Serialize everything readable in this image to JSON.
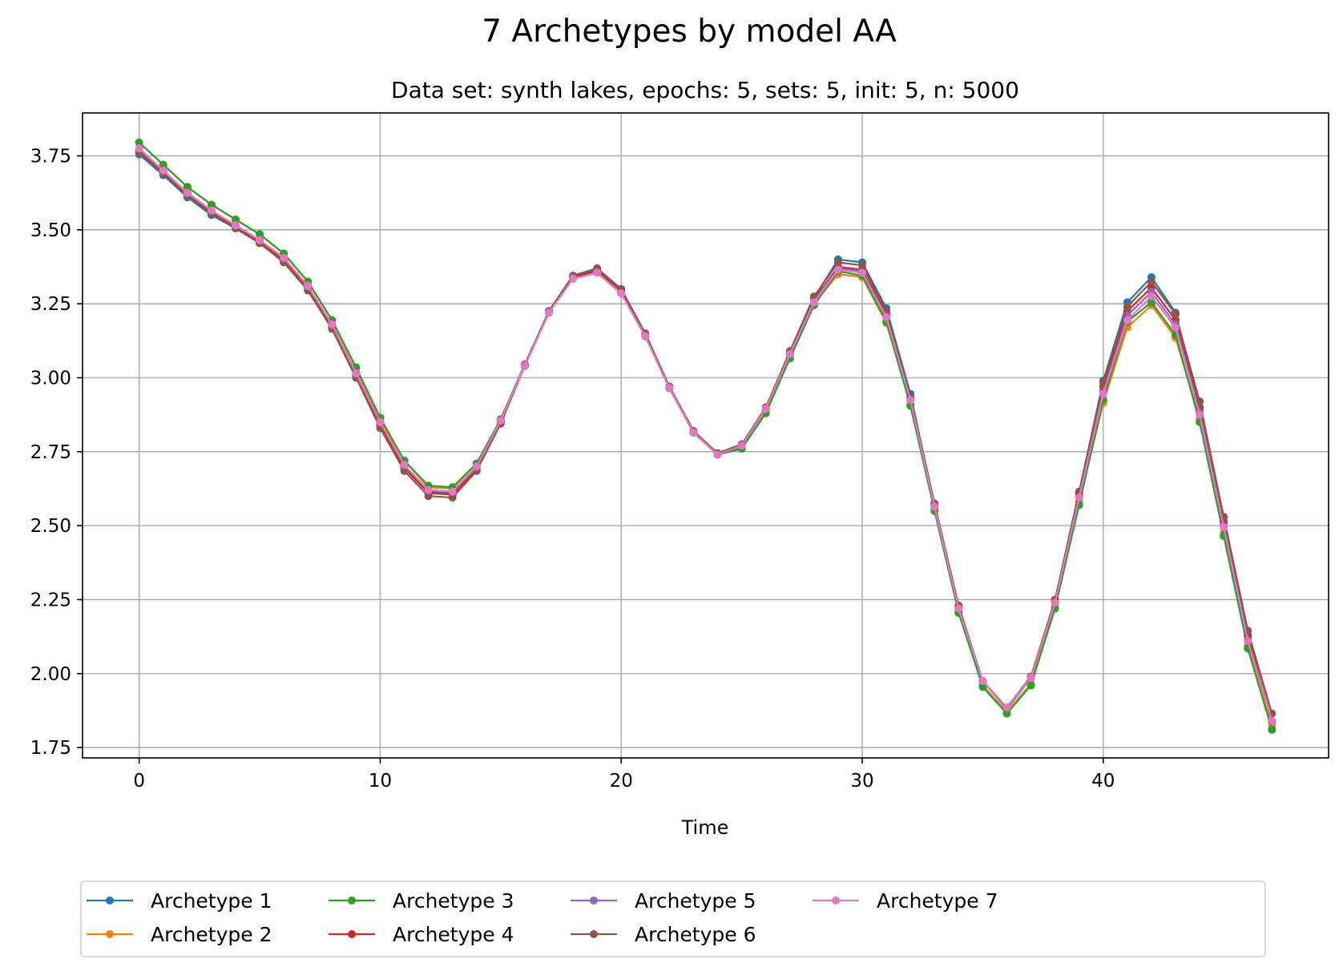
{
  "chart_data": {
    "type": "line",
    "title": "7 Archetypes by model AA",
    "subtitle": "Data set: synth lakes, epochs: 5, sets: 5, init: 5, n: 5000",
    "xlabel": "Time",
    "ylabel": "",
    "xlim": [
      -2.35,
      49.35
    ],
    "ylim": [
      1.715,
      3.895
    ],
    "xticks": [
      0,
      10,
      20,
      30,
      40
    ],
    "yticks": [
      1.75,
      2.0,
      2.25,
      2.5,
      2.75,
      3.0,
      3.25,
      3.5,
      3.75
    ],
    "ytick_labels": [
      "1.75",
      "2.00",
      "2.25",
      "2.50",
      "2.75",
      "3.00",
      "3.25",
      "3.50",
      "3.75"
    ],
    "grid": true,
    "legend_position": "bottom-center",
    "x": [
      0,
      1,
      2,
      3,
      4,
      5,
      6,
      7,
      8,
      9,
      10,
      11,
      12,
      13,
      14,
      15,
      16,
      17,
      18,
      19,
      20,
      21,
      22,
      23,
      24,
      25,
      26,
      27,
      28,
      29,
      30,
      31,
      32,
      33,
      34,
      35,
      36,
      37,
      38,
      39,
      40,
      41,
      42,
      43,
      44,
      45,
      46,
      47
    ],
    "series": [
      {
        "name": "Archetype 1",
        "color": "#1f77b4",
        "values": [
          3.755,
          3.685,
          3.61,
          3.55,
          3.505,
          3.455,
          3.395,
          3.305,
          3.175,
          3.01,
          2.845,
          2.7,
          2.615,
          2.61,
          2.695,
          2.855,
          3.045,
          3.225,
          3.345,
          3.365,
          3.295,
          3.145,
          2.965,
          2.815,
          2.74,
          2.77,
          2.895,
          3.085,
          3.27,
          3.4,
          3.39,
          3.235,
          2.945,
          2.57,
          2.225,
          1.975,
          1.88,
          1.985,
          2.245,
          2.61,
          2.99,
          3.255,
          3.34,
          3.22,
          2.9,
          2.515,
          2.13,
          1.835
        ]
      },
      {
        "name": "Archetype 2",
        "color": "#ff7f0e",
        "values": [
          3.795,
          3.72,
          3.645,
          3.585,
          3.535,
          3.485,
          3.42,
          3.325,
          3.195,
          3.03,
          2.86,
          2.72,
          2.63,
          2.625,
          2.71,
          2.86,
          3.045,
          3.225,
          3.34,
          3.36,
          3.29,
          3.14,
          2.965,
          2.815,
          2.74,
          2.765,
          2.885,
          3.07,
          3.25,
          3.35,
          3.34,
          3.185,
          2.91,
          2.555,
          2.21,
          1.96,
          1.87,
          1.965,
          2.225,
          2.58,
          2.915,
          3.17,
          3.245,
          3.135,
          2.86,
          2.475,
          2.095,
          1.82
        ]
      },
      {
        "name": "Archetype 3",
        "color": "#2ca02c",
        "values": [
          3.795,
          3.72,
          3.645,
          3.585,
          3.535,
          3.485,
          3.42,
          3.325,
          3.195,
          3.035,
          2.865,
          2.72,
          2.635,
          2.63,
          2.71,
          2.86,
          3.045,
          3.225,
          3.34,
          3.36,
          3.29,
          3.14,
          2.965,
          2.815,
          2.74,
          2.76,
          2.88,
          3.065,
          3.245,
          3.36,
          3.345,
          3.19,
          2.905,
          2.55,
          2.205,
          1.955,
          1.865,
          1.96,
          2.22,
          2.57,
          2.925,
          3.19,
          3.255,
          3.145,
          2.85,
          2.465,
          2.085,
          1.81
        ]
      },
      {
        "name": "Archetype 4",
        "color": "#d62728",
        "values": [
          3.765,
          3.695,
          3.62,
          3.56,
          3.51,
          3.46,
          3.4,
          3.305,
          3.17,
          3.005,
          2.84,
          2.695,
          2.61,
          2.605,
          2.69,
          2.85,
          3.04,
          3.22,
          3.34,
          3.36,
          3.29,
          3.14,
          2.965,
          2.815,
          2.74,
          2.77,
          2.895,
          3.08,
          3.265,
          3.375,
          3.365,
          3.215,
          2.935,
          2.57,
          2.225,
          1.975,
          1.885,
          1.985,
          2.245,
          2.605,
          2.97,
          3.225,
          3.305,
          3.195,
          2.895,
          2.51,
          2.125,
          1.84
        ]
      },
      {
        "name": "Archetype 5",
        "color": "#9467bd",
        "values": [
          3.77,
          3.7,
          3.625,
          3.565,
          3.515,
          3.465,
          3.405,
          3.31,
          3.18,
          3.015,
          2.85,
          2.705,
          2.62,
          2.615,
          2.7,
          2.855,
          3.045,
          3.225,
          3.335,
          3.355,
          3.285,
          3.14,
          2.965,
          2.815,
          2.74,
          2.77,
          2.895,
          3.08,
          3.26,
          3.37,
          3.36,
          3.205,
          2.925,
          2.565,
          2.22,
          1.975,
          1.885,
          1.985,
          2.24,
          2.595,
          2.955,
          3.21,
          3.29,
          3.18,
          2.885,
          2.5,
          2.115,
          1.84
        ]
      },
      {
        "name": "Archetype 6",
        "color": "#8c564b",
        "values": [
          3.76,
          3.69,
          3.615,
          3.555,
          3.505,
          3.455,
          3.39,
          3.295,
          3.165,
          3.0,
          2.83,
          2.685,
          2.6,
          2.595,
          2.685,
          2.845,
          3.04,
          3.225,
          3.345,
          3.37,
          3.3,
          3.15,
          2.97,
          2.82,
          2.745,
          2.775,
          2.9,
          3.09,
          3.275,
          3.39,
          3.38,
          3.225,
          2.935,
          2.575,
          2.23,
          1.975,
          1.885,
          1.99,
          2.25,
          2.615,
          2.985,
          3.24,
          3.325,
          3.215,
          2.92,
          2.53,
          2.145,
          1.865
        ]
      },
      {
        "name": "Archetype 7",
        "color": "#e377c2",
        "values": [
          3.775,
          3.7,
          3.625,
          3.565,
          3.515,
          3.465,
          3.405,
          3.31,
          3.18,
          3.015,
          2.85,
          2.705,
          2.62,
          2.615,
          2.7,
          2.855,
          3.04,
          3.22,
          3.335,
          3.355,
          3.285,
          3.14,
          2.965,
          2.815,
          2.74,
          2.77,
          2.895,
          3.08,
          3.255,
          3.365,
          3.355,
          3.205,
          2.925,
          2.565,
          2.22,
          1.975,
          1.885,
          1.985,
          2.24,
          2.595,
          2.945,
          3.195,
          3.275,
          3.17,
          2.875,
          2.495,
          2.11,
          1.84
        ]
      }
    ]
  }
}
